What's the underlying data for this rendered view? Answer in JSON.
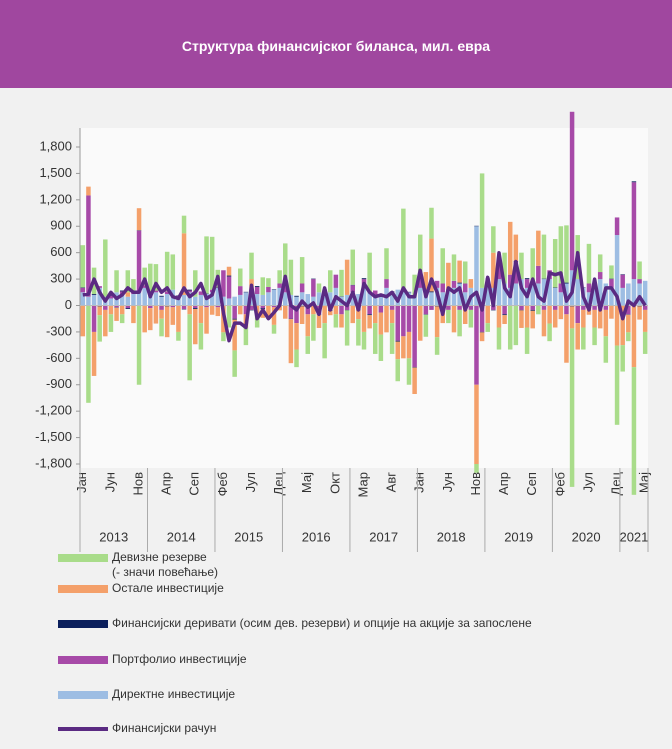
{
  "chart_data": {
    "type": "bar",
    "title": "Структура финансијског биланса, мил. евра",
    "categories": [
      "Јан",
      null,
      null,
      null,
      null,
      "Јун",
      null,
      null,
      null,
      null,
      "Нов",
      null,
      null,
      null,
      null,
      "Апр",
      null,
      null,
      null,
      null,
      "Сеп",
      null,
      null,
      null,
      null,
      "Феб",
      null,
      null,
      null,
      null,
      "Јул",
      null,
      null,
      null,
      null,
      "Дец",
      null,
      null,
      null,
      null,
      "Мај",
      null,
      null,
      null,
      null,
      "Окт",
      null,
      null,
      null,
      null,
      "Мар",
      null,
      null,
      null,
      null,
      "Авг",
      null,
      null,
      null,
      null,
      "Јан",
      null,
      null,
      null,
      null,
      "Јун",
      null,
      null,
      null,
      null,
      "Нов",
      null,
      null,
      null,
      null,
      "Апр",
      null,
      null,
      null,
      null,
      "Сеп",
      null,
      null,
      null,
      null,
      "Феб",
      null,
      null,
      null,
      null,
      "Јул",
      null,
      null,
      null,
      null,
      "Дец",
      null,
      null,
      null,
      null,
      "Мај"
    ],
    "years": [
      "2013",
      "2014",
      "2015",
      "2016",
      "2017",
      "2018",
      "2019",
      "2020",
      "2021"
    ],
    "ylim": [
      -1800,
      1800
    ],
    "yticks": [
      {
        "value": 1800,
        "label": "1,800"
      },
      {
        "value": 1500,
        "label": "1,500"
      },
      {
        "value": 1200,
        "label": "1,200"
      },
      900,
      600,
      300,
      0,
      -300,
      -600,
      -900,
      {
        "value": -1200,
        "label": "-1,200"
      },
      {
        "value": -1500,
        "label": "-1,500"
      },
      {
        "value": -1800,
        "label": "-1,800"
      }
    ],
    "grid": false,
    "series": [
      {
        "name": "Девизне резерве\n(- значи повећање)",
        "color": "#a9dc8a",
        "values": [
          480,
          -1100,
          300,
          -300,
          650,
          -200,
          250,
          -100,
          250,
          150,
          -900,
          200,
          350,
          300,
          -200,
          450,
          400,
          -100,
          200,
          -750,
          300,
          -300,
          650,
          600,
          200,
          -100,
          -250,
          -300,
          200,
          -200,
          300,
          -150,
          200,
          100,
          -100,
          150,
          450,
          400,
          -200,
          300,
          -200,
          -300,
          100,
          -400,
          250,
          -150,
          300,
          -400,
          400,
          -300,
          -200,
          450,
          -350,
          -300,
          350,
          -350,
          -250,
          900,
          -300,
          250,
          500,
          -250,
          350,
          -200,
          400,
          -150,
          300,
          -300,
          250,
          -200,
          -100,
          1300,
          -100,
          300,
          -250,
          350,
          -500,
          -450,
          300,
          -300,
          400,
          -100,
          500,
          -200,
          550,
          650,
          650,
          -1800,
          500,
          -250,
          450,
          -200,
          200,
          -300,
          150,
          -900,
          -300,
          -100,
          -1450,
          200,
          -250
        ]
      },
      {
        "name": "Остале инвестиције",
        "color": "#f4a06a",
        "values": [
          -350,
          100,
          -500,
          -100,
          -300,
          -100,
          -150,
          -100,
          50,
          -200,
          250,
          -300,
          -250,
          -200,
          -100,
          -350,
          -200,
          -300,
          700,
          -100,
          -400,
          -200,
          -300,
          -100,
          -100,
          -300,
          100,
          -350,
          -100,
          -150,
          200,
          -100,
          -100,
          -150,
          -200,
          -50,
          -150,
          -500,
          -300,
          -200,
          -250,
          -100,
          -150,
          -200,
          -50,
          -100,
          -150,
          400,
          -200,
          -100,
          -300,
          -150,
          -200,
          -250,
          -300,
          -150,
          -200,
          -250,
          -300,
          -300,
          -400,
          200,
          600,
          -350,
          -200,
          300,
          -300,
          250,
          -200,
          100,
          -900,
          -100,
          -200,
          400,
          -250,
          -100,
          600,
          300,
          -200,
          -250,
          -200,
          400,
          -300,
          -200,
          -200,
          -150,
          -550,
          -250,
          -300,
          -200,
          -100,
          -200,
          -250,
          -300,
          -150,
          -450,
          -450,
          -200,
          -700,
          -150,
          -250
        ]
      },
      {
        "name": "Финансијски деривати (осим дев. резерви) и опције на акције за запослене",
        "color": "#0b1f5c",
        "values": [
          5,
          -5,
          10,
          -10,
          0,
          5,
          -5,
          10,
          -10,
          0,
          5,
          -5,
          5,
          -5,
          10,
          -10,
          0,
          5,
          -5,
          10,
          -10,
          0,
          5,
          -5,
          5,
          -5,
          10,
          -10,
          0,
          5,
          -5,
          10,
          -10,
          0,
          5,
          -5,
          5,
          -5,
          10,
          -10,
          0,
          5,
          -5,
          10,
          -10,
          0,
          5,
          -5,
          5,
          -5,
          10,
          -10,
          0,
          5,
          -5,
          10,
          -10,
          0,
          5,
          -5,
          5,
          -5,
          10,
          -10,
          0,
          5,
          -5,
          10,
          -10,
          0,
          5,
          -5,
          5,
          -5,
          10,
          -10,
          0,
          5,
          -5,
          10,
          -10,
          0,
          5,
          -5,
          5,
          -5,
          10,
          -10,
          0,
          5,
          -5,
          10,
          -10,
          0,
          5,
          -5,
          5,
          -5,
          10,
          -10,
          0
        ]
      },
      {
        "name": "Портфолио инвестиције",
        "color": "#a74aa8",
        "values": [
          50,
          1150,
          -300,
          20,
          -50,
          30,
          -20,
          40,
          -30,
          20,
          700,
          30,
          -30,
          20,
          -50,
          30,
          -20,
          10,
          -40,
          20,
          -30,
          40,
          -20,
          30,
          -20,
          300,
          250,
          -150,
          100,
          -100,
          -50,
          80,
          -30,
          60,
          -20,
          50,
          100,
          -150,
          -200,
          100,
          -100,
          200,
          -100,
          50,
          -50,
          150,
          -100,
          -50,
          80,
          -50,
          100,
          -100,
          50,
          -80,
          100,
          -50,
          -400,
          -350,
          -300,
          -700,
          100,
          -100,
          -50,
          80,
          100,
          -50,
          80,
          -50,
          100,
          -50,
          -900,
          -300,
          50,
          -50,
          200,
          -100,
          150,
          250,
          -50,
          100,
          -50,
          200,
          -50,
          100,
          -50,
          100,
          -100,
          1800,
          -200,
          -50,
          100,
          -50,
          80,
          -50,
          100,
          200,
          150,
          -100,
          1100,
          50,
          -50
        ]
      },
      {
        "name": "Директне инвестиције",
        "color": "#9dbde3",
        "values": [
          150,
          100,
          120,
          200,
          100,
          80,
          150,
          120,
          100,
          130,
          150,
          200,
          120,
          150,
          100,
          130,
          180,
          100,
          120,
          150,
          100,
          120,
          130,
          150,
          200,
          100,
          80,
          100,
          120,
          150,
          100,
          130,
          120,
          150,
          180,
          200,
          150,
          120,
          100,
          150,
          130,
          100,
          150,
          120,
          150,
          200,
          100,
          120,
          150,
          130,
          200,
          150,
          120,
          100,
          200,
          150,
          180,
          200,
          150,
          100,
          200,
          180,
          150,
          200,
          150,
          180,
          200,
          250,
          150,
          200,
          900,
          200,
          250,
          200,
          300,
          250,
          200,
          250,
          300,
          200,
          250,
          250,
          300,
          300,
          200,
          150,
          250,
          400,
          300,
          200,
          150,
          200,
          300,
          250,
          200,
          800,
          200,
          250,
          300,
          250,
          280
        ]
      },
      {
        "name": "Финансијски рачун",
        "color": "#5a2a82",
        "chart_type": "line",
        "values": [
          120,
          130,
          300,
          150,
          50,
          150,
          80,
          120,
          200,
          150,
          150,
          300,
          100,
          250,
          150,
          200,
          100,
          80,
          200,
          100,
          150,
          250,
          80,
          120,
          330,
          -80,
          -400,
          -200,
          -200,
          -250,
          230,
          -150,
          -50,
          -150,
          -80,
          0,
          330,
          0,
          -50,
          50,
          -20,
          30,
          -100,
          200,
          -50,
          100,
          50,
          0,
          150,
          -50,
          250,
          150,
          100,
          120,
          100,
          150,
          50,
          200,
          100,
          100,
          400,
          100,
          300,
          150,
          -100,
          200,
          150,
          200,
          -50,
          100,
          150,
          -50,
          320,
          0,
          600,
          200,
          100,
          500,
          200,
          100,
          300,
          100,
          50,
          370,
          350,
          370,
          50,
          150,
          600,
          100,
          -50,
          300,
          -50,
          200,
          200,
          100,
          -150,
          50,
          0,
          100,
          0
        ]
      }
    ]
  }
}
